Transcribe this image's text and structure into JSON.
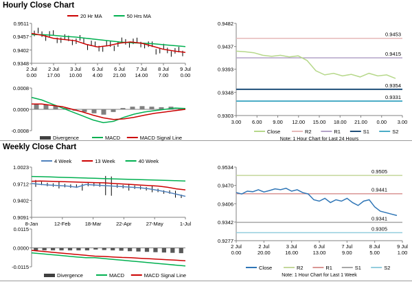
{
  "sections": {
    "hourly_title": "Hourly Close Chart",
    "weekly_title": "Weekly Close Chart"
  },
  "colors": {
    "ma_short": "#cc0000",
    "ma_long": "#00b050",
    "ma_4": "#4f81bd",
    "close_hourly": "#b6d88a",
    "close_weekly": "#2e75b6",
    "r2": "#e6b8b8",
    "r1": "#b3a2c7",
    "s1": "#1f4e79",
    "s2": "#4bacc6",
    "r2_w": "#c4d79b",
    "r1_w": "#d99694",
    "s1_w": "#a6a6a6",
    "s2_w": "#93cddd",
    "hist": "#808080"
  },
  "chart_data": [
    {
      "id": "hourly_price",
      "type": "line",
      "series": [
        {
          "name": "20 Hr MA"
        },
        {
          "name": "50 Hrs MA"
        }
      ],
      "y_ticks": [
        "0.9511",
        "0.9457",
        "0.9402",
        "0.9348"
      ],
      "ylim": [
        0.9348,
        0.9511
      ],
      "x_ticks": [
        [
          "2 Jul",
          "0.00"
        ],
        [
          "2 Jul",
          "17.00"
        ],
        [
          "3 Jul",
          "10.00"
        ],
        [
          "6 Jul",
          "4.00"
        ],
        [
          "6 Jul",
          "21.00"
        ],
        [
          "7 Jul",
          "14.00"
        ],
        [
          "8 Jul",
          "7.00"
        ],
        [
          "9 Jul",
          "0.00"
        ]
      ],
      "ma_short": [
        0.947,
        0.9462,
        0.945,
        0.9445,
        0.944,
        0.9425,
        0.9415,
        0.942,
        0.943,
        0.9435,
        0.943,
        0.9418,
        0.9405,
        0.9398,
        0.9392
      ],
      "ma_long": [
        0.9465,
        0.9465,
        0.9462,
        0.9458,
        0.9455,
        0.945,
        0.9445,
        0.944,
        0.9435,
        0.9432,
        0.943,
        0.9428,
        0.9424,
        0.942,
        0.9416
      ]
    },
    {
      "id": "hourly_macd",
      "type": "line",
      "y_ticks": [
        "0.0008",
        "0.0000",
        "-0.0008"
      ],
      "ylim": [
        -0.0008,
        0.0008
      ],
      "series": [
        {
          "name": "Divergence"
        },
        {
          "name": "MACD"
        },
        {
          "name": "MACD Signal Line"
        }
      ],
      "macd": [
        0.00045,
        0.00035,
        0.0002,
        5e-05,
        -0.0001,
        -0.00025,
        -0.0004,
        -0.0005,
        -0.00045,
        -0.0003,
        -0.00018,
        -0.0001,
        -5e-05,
        0.0,
        5e-05,
        3e-05
      ],
      "signal": [
        0.0002,
        0.0002,
        0.00015,
        0.0001,
        0.0,
        -0.0001,
        -0.00022,
        -0.00032,
        -0.00038,
        -0.00036,
        -0.0003,
        -0.00022,
        -0.00015,
        -0.0001,
        -5e-05,
        0.0
      ],
      "divergence": [
        0.0002,
        0.00018,
        0.00012,
        5e-05,
        -5e-05,
        -0.0001,
        -0.00015,
        -0.0002,
        -0.0001,
        5e-05,
        0.0001,
        0.00012,
        0.0001,
        8e-05,
        0.0001,
        3e-05
      ]
    },
    {
      "id": "hourly_pivot",
      "type": "line",
      "y_ticks": [
        "0.9482",
        "0.9437",
        "0.9393",
        "0.9348",
        "0.9303"
      ],
      "ylim": [
        0.9303,
        0.9482
      ],
      "x_ticks": [
        "3.00",
        "6.00",
        "9.00",
        "12.00",
        "15.00",
        "18.00",
        "21.00",
        "0.00",
        "3.00"
      ],
      "series": [
        {
          "name": "Close"
        },
        {
          "name": "R2"
        },
        {
          "name": "R1"
        },
        {
          "name": "S1"
        },
        {
          "name": "S2"
        }
      ],
      "close": [
        0.9428,
        0.9427,
        0.9425,
        0.942,
        0.9418,
        0.942,
        0.9417,
        0.9419,
        0.941,
        0.939,
        0.9382,
        0.9385,
        0.938,
        0.9383,
        0.9378,
        0.9385,
        0.938,
        0.9382,
        0.9375
      ],
      "levels": {
        "R2": 0.9453,
        "R1": 0.9415,
        "S1": 0.9354,
        "S2": 0.9331
      },
      "level_labels": {
        "R2": "0.9453",
        "R1": "0.9415",
        "S1": "0.9354",
        "S2": "0.9331"
      },
      "note": "Note: 1 Hour Chart for Last 24 Hours"
    },
    {
      "id": "weekly_price",
      "type": "line",
      "y_ticks": [
        "1.0023",
        "0.9712",
        "0.9402",
        "0.9091"
      ],
      "ylim": [
        0.9091,
        1.0023
      ],
      "x_ticks": [
        "8-Jan",
        "12-Feb",
        "18-Mar",
        "22-Apr",
        "27-May",
        "1-Jul"
      ],
      "series": [
        {
          "name": "4 Week"
        },
        {
          "name": "13 Week"
        },
        {
          "name": "40 Week"
        }
      ],
      "ma_4": [
        0.972,
        0.97,
        0.969,
        0.968,
        0.967,
        0.965,
        0.97,
        0.969,
        0.968,
        0.967,
        0.966,
        0.965,
        0.964,
        0.962,
        0.959,
        0.956,
        0.952,
        0.948
      ],
      "ma_13": [
        0.976,
        0.9765,
        0.976,
        0.9755,
        0.975,
        0.9745,
        0.974,
        0.9735,
        0.973,
        0.972,
        0.971,
        0.97,
        0.969,
        0.968,
        0.967,
        0.965,
        0.962,
        0.96
      ],
      "ma_40": [
        0.985,
        0.9845,
        0.984,
        0.9835,
        0.983,
        0.9825,
        0.982,
        0.9815,
        0.981,
        0.9805,
        0.98,
        0.9795,
        0.979,
        0.9785,
        0.978,
        0.9775,
        0.977,
        0.9765
      ]
    },
    {
      "id": "weekly_macd",
      "type": "line",
      "y_ticks": [
        "0.0115",
        "0.0000",
        "-0.0115"
      ],
      "ylim": [
        -0.0115,
        0.0115
      ],
      "series": [
        {
          "name": "Divergence"
        },
        {
          "name": "MACD"
        },
        {
          "name": "MACD Signal Line"
        }
      ],
      "macd": [
        -0.003,
        -0.0035,
        -0.004,
        -0.0045,
        -0.005,
        -0.0055,
        -0.006,
        -0.006,
        -0.0065,
        -0.007,
        -0.0075,
        -0.008,
        -0.0085,
        -0.009,
        -0.0095,
        -0.01,
        -0.0105,
        -0.011
      ],
      "signal": [
        -0.0015,
        -0.002,
        -0.0025,
        -0.003,
        -0.0035,
        -0.004,
        -0.0045,
        -0.005,
        -0.0052,
        -0.0055,
        -0.0058,
        -0.006,
        -0.0063,
        -0.0066,
        -0.0069,
        -0.0072,
        -0.0075,
        -0.0078
      ],
      "divergence": [
        -0.0015,
        -0.0015,
        -0.0015,
        -0.0015,
        -0.0015,
        -0.0015,
        -0.0015,
        -0.001,
        -0.0013,
        -0.0015,
        -0.0017,
        -0.002,
        -0.0022,
        -0.0024,
        -0.0026,
        -0.0028,
        -0.003,
        -0.0032
      ]
    },
    {
      "id": "weekly_pivot",
      "type": "line",
      "y_ticks": [
        "0.9534",
        "0.9470",
        "0.9406",
        "0.9342",
        "0.9277"
      ],
      "ylim": [
        0.9277,
        0.9534
      ],
      "x_ticks": [
        [
          "2 Jul",
          "0.00"
        ],
        [
          "2 Jul",
          "20.00"
        ],
        [
          "3 Jul",
          "16.00"
        ],
        [
          "6 Jul",
          "13.00"
        ],
        [
          "7 Jul",
          "9.00"
        ],
        [
          "8 Jul",
          "5.00"
        ],
        [
          "9 Jul",
          "1.00"
        ]
      ],
      "series": [
        {
          "name": "Close"
        },
        {
          "name": "R2"
        },
        {
          "name": "R1"
        },
        {
          "name": "S1"
        },
        {
          "name": "S2"
        }
      ],
      "close": [
        0.9445,
        0.944,
        0.945,
        0.9448,
        0.9455,
        0.9447,
        0.9452,
        0.9458,
        0.9455,
        0.946,
        0.945,
        0.9455,
        0.9445,
        0.944,
        0.942,
        0.9415,
        0.9425,
        0.941,
        0.942,
        0.9415,
        0.9425,
        0.941,
        0.94,
        0.9415,
        0.942,
        0.9395,
        0.938,
        0.9375,
        0.937,
        0.9365
      ],
      "levels": {
        "R2": 0.9505,
        "R1": 0.9441,
        "S1": 0.9341,
        "S2": 0.9305
      },
      "level_labels": {
        "R2": "0.9505",
        "R1": "0.9441",
        "S1": "0.9341",
        "S2": "0.9305"
      },
      "note": "Note: 1 Hour Chart for Last 1 Week"
    }
  ]
}
